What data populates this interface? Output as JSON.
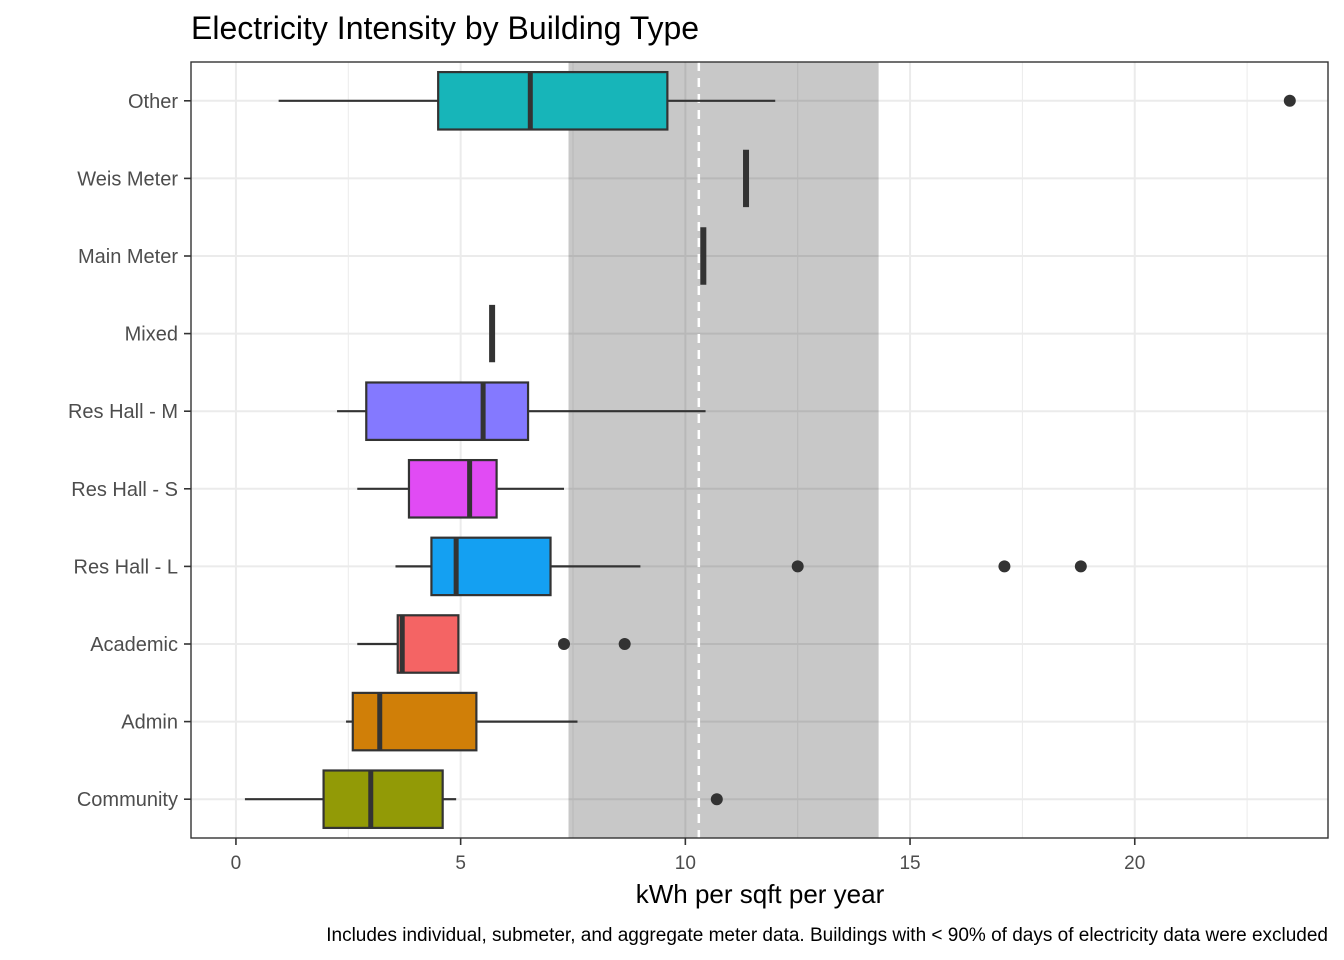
{
  "chart_data": {
    "type": "boxplot",
    "title": "Electricity Intensity by Building Type",
    "xlabel": "kWh per sqft per year",
    "ylabel": "",
    "caption": "Includes individual, submeter, and aggregate meter data. Buildings with < 90% of days of electricity data were excluded",
    "xlim": [
      -1,
      24.3
    ],
    "xticks": [
      0,
      5,
      10,
      15,
      20
    ],
    "xtick_labels": [
      "0",
      "5",
      "10",
      "15",
      "20"
    ],
    "grid": true,
    "reference_band": {
      "from": 7.4,
      "to": 14.3,
      "color": "#c8c8c8"
    },
    "reference_line": {
      "value": 10.3,
      "style": "dashed",
      "color": "#ffffff"
    },
    "categories_top_to_bottom": [
      "Other",
      "Weis Meter",
      "Main Meter",
      "Mixed",
      "Res Hall - M",
      "Res Hall - S",
      "Res Hall - L",
      "Academic",
      "Admin",
      "Community"
    ],
    "series": [
      {
        "name": "Other",
        "color": "#17B5B9",
        "whisker_low": 0.95,
        "q1": 4.5,
        "median": 6.55,
        "q3": 9.6,
        "whisker_high": 12.0,
        "outliers": [
          23.45
        ]
      },
      {
        "name": "Weis Meter",
        "color": "#000000",
        "whisker_low": 11.35,
        "q1": 11.35,
        "median": 11.35,
        "q3": 11.35,
        "whisker_high": 11.35,
        "outliers": []
      },
      {
        "name": "Main Meter",
        "color": "#000000",
        "whisker_low": 10.4,
        "q1": 10.4,
        "median": 10.4,
        "q3": 10.4,
        "whisker_high": 10.4,
        "outliers": []
      },
      {
        "name": "Mixed",
        "color": "#000000",
        "whisker_low": 5.7,
        "q1": 5.7,
        "median": 5.7,
        "q3": 5.7,
        "whisker_high": 5.7,
        "outliers": []
      },
      {
        "name": "Res Hall - M",
        "color": "#8479FF",
        "whisker_low": 2.25,
        "q1": 2.9,
        "median": 5.5,
        "q3": 6.5,
        "whisker_high": 10.45,
        "outliers": []
      },
      {
        "name": "Res Hall - S",
        "color": "#E14BF4",
        "whisker_low": 2.7,
        "q1": 3.85,
        "median": 5.2,
        "q3": 5.8,
        "whisker_high": 7.3,
        "outliers": []
      },
      {
        "name": "Res Hall - L",
        "color": "#14A0F2",
        "whisker_low": 3.55,
        "q1": 4.35,
        "median": 4.9,
        "q3": 7.0,
        "whisker_high": 9.0,
        "outliers": [
          12.5,
          17.1,
          18.8
        ]
      },
      {
        "name": "Academic",
        "color": "#F46464",
        "whisker_low": 2.7,
        "q1": 3.6,
        "median": 3.7,
        "q3": 4.95,
        "whisker_high": 4.95,
        "outliers": [
          7.3,
          8.65
        ]
      },
      {
        "name": "Admin",
        "color": "#D07F08",
        "whisker_low": 2.45,
        "q1": 2.6,
        "median": 3.2,
        "q3": 5.35,
        "whisker_high": 7.6,
        "outliers": []
      },
      {
        "name": "Community",
        "color": "#929A06",
        "whisker_low": 0.2,
        "q1": 1.95,
        "median": 3.0,
        "q3": 4.6,
        "whisker_high": 4.9,
        "outliers": [
          10.7
        ]
      }
    ]
  }
}
